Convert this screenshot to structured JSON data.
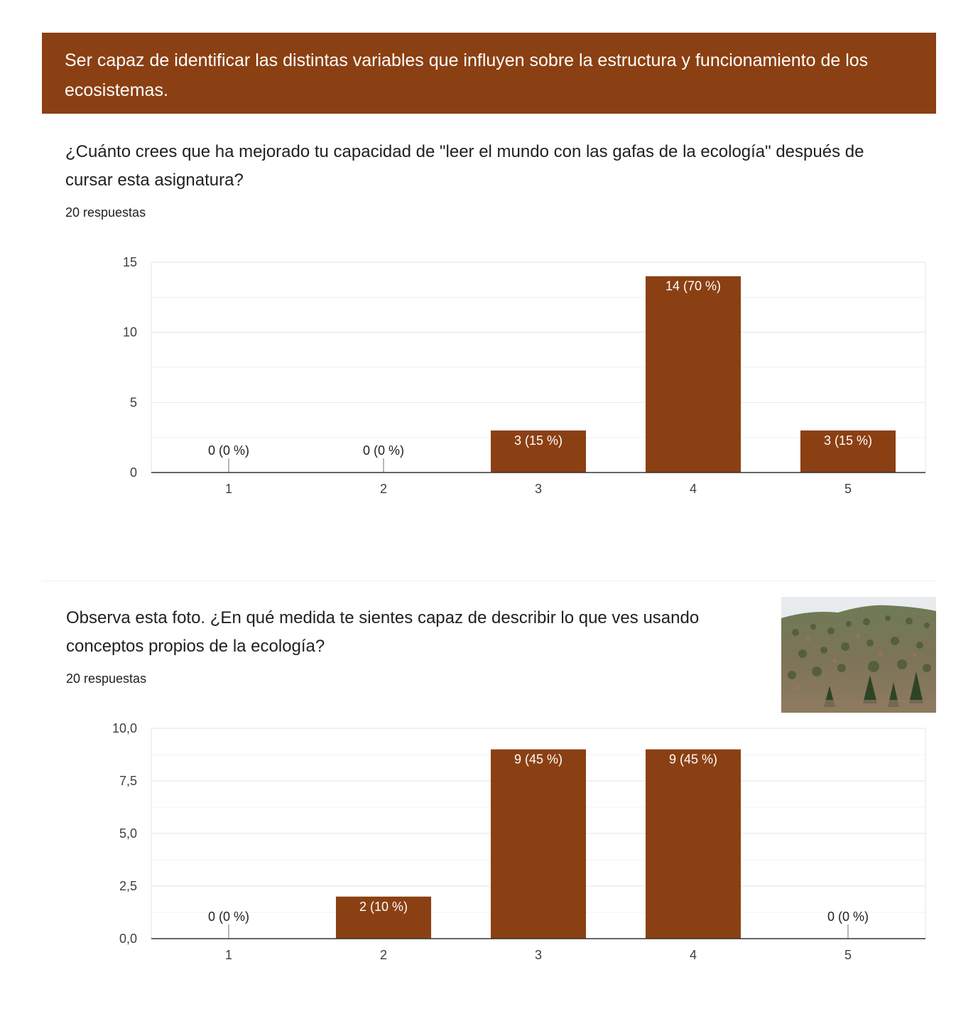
{
  "section_banner": {
    "text": "Ser capaz de identificar las distintas variables que influyen sobre la estructura y funcionamiento de los ecosistemas.",
    "color": "#8b4013"
  },
  "questions": [
    {
      "title": "¿Cuánto crees que ha mejorado tu capacidad de \"leer el mundo con las gafas de la ecología\" después de cursar esta asignatura?",
      "responses": "20 respuestas"
    },
    {
      "title": "Observa esta foto. ¿En qué medida te sientes capaz de describir lo que ves usando conceptos propios de la ecología?",
      "responses": "20 respuestas",
      "image": "hillside-pine-forest-photo"
    }
  ],
  "chart_data": [
    {
      "type": "bar",
      "categories": [
        "1",
        "2",
        "3",
        "4",
        "5"
      ],
      "values": [
        0,
        0,
        3,
        14,
        3
      ],
      "data_labels": [
        "0 (0 %)",
        "0 (0 %)",
        "3 (15 %)",
        "14 (70 %)",
        "3 (15 %)"
      ],
      "ylim": [
        0,
        15
      ],
      "yticks": [
        0,
        5,
        10,
        15
      ],
      "ytick_labels": [
        "0",
        "5",
        "10",
        "15"
      ],
      "grid": true,
      "bar_color": "#8b4013"
    },
    {
      "type": "bar",
      "categories": [
        "1",
        "2",
        "3",
        "4",
        "5"
      ],
      "values": [
        0,
        2,
        9,
        9,
        0
      ],
      "data_labels": [
        "0 (0 %)",
        "2 (10 %)",
        "9 (45 %)",
        "9 (45 %)",
        "0 (0 %)"
      ],
      "ylim": [
        0,
        10
      ],
      "yticks": [
        0,
        2.5,
        5,
        7.5,
        10
      ],
      "ytick_labels": [
        "0,0",
        "2,5",
        "5,0",
        "7,5",
        "10,0"
      ],
      "grid": true,
      "bar_color": "#8b4013"
    }
  ]
}
